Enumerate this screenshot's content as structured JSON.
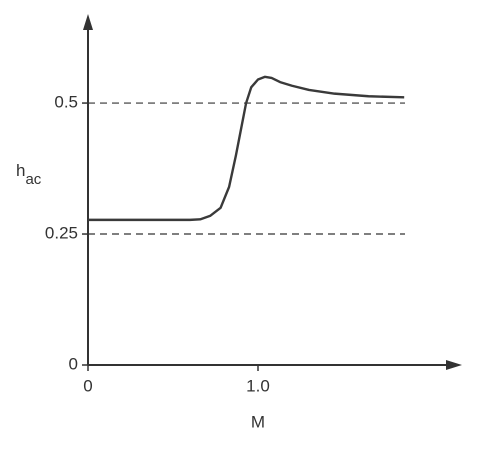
{
  "chart_data": {
    "type": "line",
    "ylabel": {
      "text": "h",
      "subscript": "ac"
    },
    "xlabel": "M",
    "x": [
      0,
      0.3,
      0.6,
      0.66,
      0.72,
      0.78,
      0.83,
      0.87,
      0.9,
      0.93,
      0.96,
      1.0,
      1.04,
      1.08,
      1.13,
      1.2,
      1.3,
      1.45,
      1.65,
      1.86
    ],
    "series": [
      {
        "color": "#3a3a3a",
        "values": [
          0.277,
          0.277,
          0.277,
          0.278,
          0.285,
          0.3,
          0.34,
          0.4,
          0.45,
          0.5,
          0.53,
          0.545,
          0.55,
          0.548,
          0.54,
          0.533,
          0.525,
          0.518,
          0.513,
          0.511
        ]
      }
    ],
    "xlim": [
      0,
      2.2
    ],
    "ylim": [
      0,
      0.67
    ],
    "xticks": [
      0,
      {
        "value": 1,
        "label": "1.0"
      }
    ],
    "yticks": [
      0,
      0.25,
      0.5
    ],
    "hlines": [
      0.25,
      0.5
    ],
    "hline_style": "dashed"
  }
}
